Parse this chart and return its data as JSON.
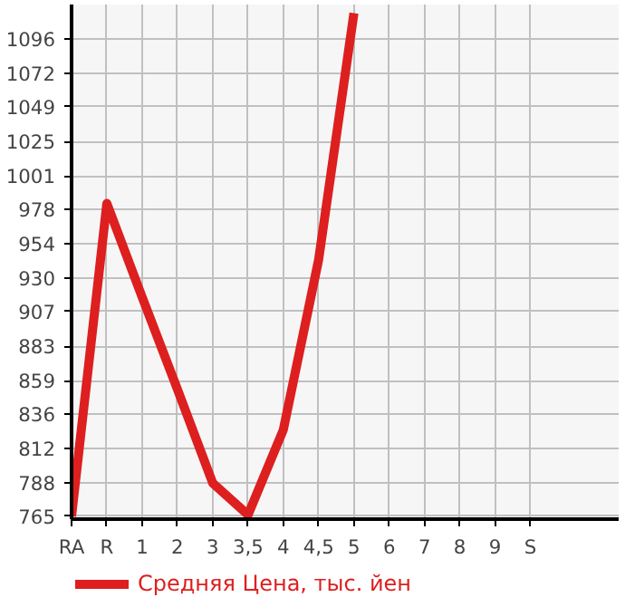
{
  "chart_data": {
    "type": "line",
    "categories": [
      "RA",
      "R",
      "1",
      "2",
      "3",
      "3,5",
      "4",
      "4,5",
      "5",
      "6",
      "7",
      "8",
      "9",
      "S"
    ],
    "series": [
      {
        "name": "Средняя Цена, тыс. йен",
        "color": "#dd1f1f",
        "values": [
          765,
          982,
          917,
          853,
          788,
          766,
          825,
          943,
          1114,
          null,
          null,
          null,
          null,
          null
        ]
      }
    ],
    "ylim": [
      763,
      1120
    ],
    "yticks": [
      765,
      788,
      812,
      836,
      859,
      883,
      907,
      930,
      954,
      978,
      1001,
      1025,
      1049,
      1072,
      1096
    ],
    "grid": true,
    "legend": "bottom",
    "marker": "none",
    "line_style": "solid"
  }
}
